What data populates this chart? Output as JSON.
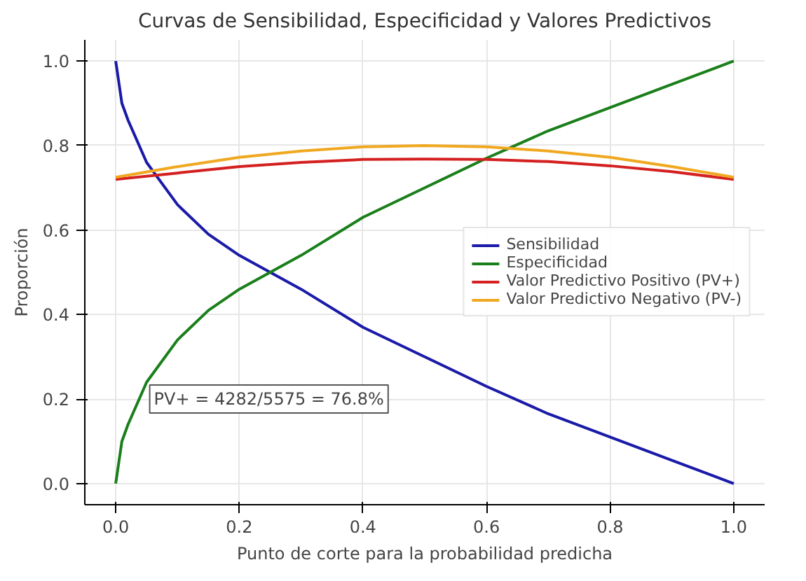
{
  "chart_data": {
    "type": "line",
    "title": "Curvas de Sensibilidad, Especificidad y Valores Predictivos",
    "xlabel": "Punto de corte para la probabilidad predicha",
    "ylabel": "Proporción",
    "xlim": [
      -0.05,
      1.05
    ],
    "ylim": [
      -0.05,
      1.05
    ],
    "xticks": [
      {
        "value": 0,
        "label": "0.0"
      },
      0.2,
      0.4,
      0.6,
      0.8,
      {
        "value": 1,
        "label": "1.0"
      }
    ],
    "yticks": [
      {
        "value": 0,
        "label": "0.0"
      },
      0.2,
      0.4,
      0.6,
      0.8,
      {
        "value": 1,
        "label": "1.0"
      }
    ],
    "grid": true,
    "legend": "right",
    "line_style": "solid",
    "annotations": [
      "PV+ = 4282/5575 = 76.8%"
    ],
    "series": [
      {
        "name": "Sensibilidad",
        "color": "#1a1aa8",
        "x": [
          0,
          0.01,
          0.02,
          0.05,
          0.1,
          0.15,
          0.2,
          0.25,
          0.3,
          0.4,
          0.5,
          0.6,
          0.7,
          0.8,
          0.9,
          1.0
        ],
        "values": [
          1.0,
          0.9,
          0.86,
          0.76,
          0.66,
          0.59,
          0.54,
          0.5,
          0.46,
          0.37,
          0.3,
          0.23,
          0.165,
          0.11,
          0.055,
          0.0
        ]
      },
      {
        "name": "Especificidad",
        "color": "#1a7f1a",
        "x": [
          0,
          0.01,
          0.02,
          0.05,
          0.1,
          0.15,
          0.2,
          0.25,
          0.3,
          0.4,
          0.5,
          0.6,
          0.7,
          0.8,
          0.9,
          1.0
        ],
        "values": [
          0.0,
          0.1,
          0.14,
          0.24,
          0.34,
          0.41,
          0.46,
          0.5,
          0.54,
          0.63,
          0.7,
          0.77,
          0.835,
          0.89,
          0.945,
          1.0
        ]
      },
      {
        "name": "Valor Predictivo Positivo (PV+)",
        "color": "#d42020",
        "x": [
          0,
          0.1,
          0.2,
          0.3,
          0.4,
          0.5,
          0.6,
          0.7,
          0.8,
          0.9,
          1.0
        ],
        "values": [
          0.72,
          0.735,
          0.75,
          0.76,
          0.767,
          0.768,
          0.767,
          0.762,
          0.752,
          0.738,
          0.72
        ]
      },
      {
        "name": "Valor Predictivo Negativo (PV-)",
        "color": "#f0a820",
        "x": [
          0,
          0.1,
          0.2,
          0.3,
          0.4,
          0.5,
          0.6,
          0.7,
          0.8,
          0.9,
          1.0
        ],
        "values": [
          0.725,
          0.75,
          0.772,
          0.787,
          0.797,
          0.8,
          0.797,
          0.787,
          0.772,
          0.75,
          0.725
        ]
      }
    ]
  }
}
